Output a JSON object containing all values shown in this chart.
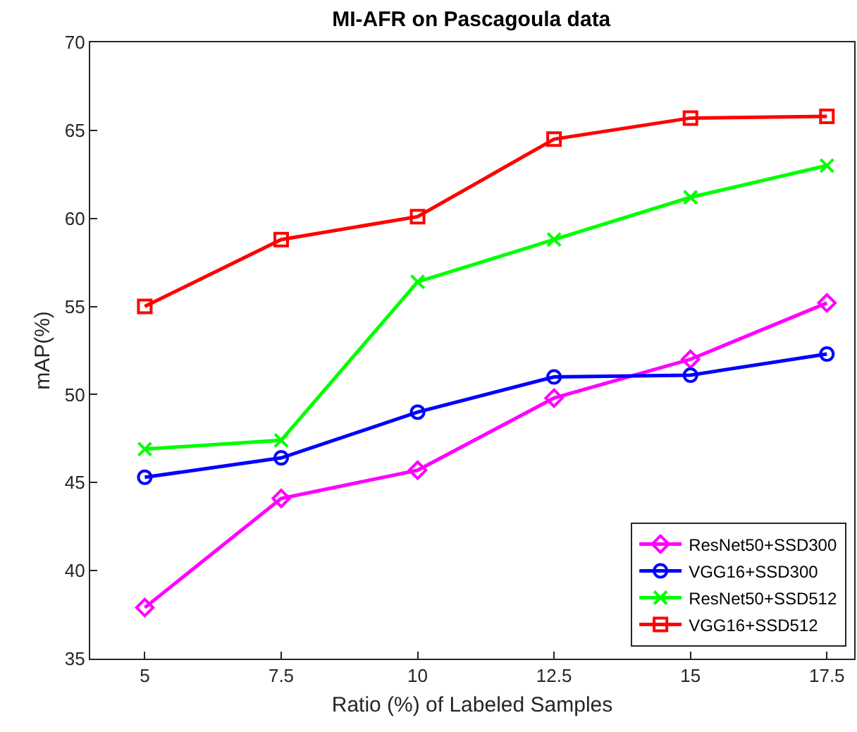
{
  "chart_data": {
    "type": "line",
    "title": "MI-AFR on Pascagoula data",
    "xlabel": "Ratio (%) of Labeled Samples",
    "ylabel": "mAP(%)",
    "x": [
      5,
      7.5,
      10,
      12.5,
      15,
      17.5
    ],
    "series": [
      {
        "name": "ResNet50+SSD300",
        "color": "#ff00ff",
        "marker": "diamond",
        "values": [
          37.9,
          44.1,
          45.7,
          49.8,
          52.0,
          55.2
        ]
      },
      {
        "name": "VGG16+SSD300",
        "color": "#0000ff",
        "marker": "circle",
        "values": [
          45.3,
          46.4,
          49.0,
          51.0,
          51.1,
          52.3
        ]
      },
      {
        "name": "ResNet50+SSD512",
        "color": "#00ff00",
        "marker": "cross",
        "values": [
          46.9,
          47.4,
          56.4,
          58.8,
          61.2,
          63.0
        ]
      },
      {
        "name": "VGG16+SSD512",
        "color": "#ff0000",
        "marker": "square",
        "values": [
          55.0,
          58.8,
          60.1,
          64.5,
          65.7,
          65.8
        ]
      }
    ],
    "xlim": [
      4,
      18
    ],
    "xticks": [
      5,
      7.5,
      10,
      12.5,
      15,
      17.5
    ],
    "ylim": [
      35,
      70
    ],
    "yticks": [
      35,
      40,
      45,
      50,
      55,
      60,
      65,
      70
    ],
    "grid": false,
    "legend": "bottom right",
    "line_style": "solid"
  }
}
